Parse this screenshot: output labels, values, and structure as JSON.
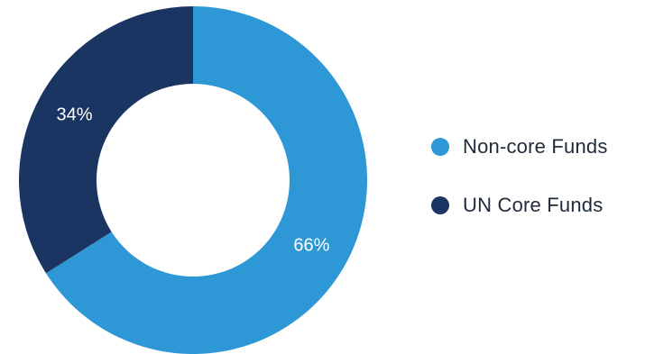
{
  "chart_data": {
    "type": "pie",
    "variant": "donut",
    "categories": [
      "Non-core Funds",
      "UN Core Funds"
    ],
    "values": [
      66,
      34
    ],
    "value_labels": [
      "66%",
      "34%"
    ],
    "colors": [
      "#2e97d5",
      "#1b3563"
    ],
    "legend_position": "right"
  },
  "legend": {
    "items": [
      {
        "label": "Non-core Funds",
        "color": "#2e97d5"
      },
      {
        "label": "UN Core Funds",
        "color": "#1b3563"
      }
    ]
  }
}
